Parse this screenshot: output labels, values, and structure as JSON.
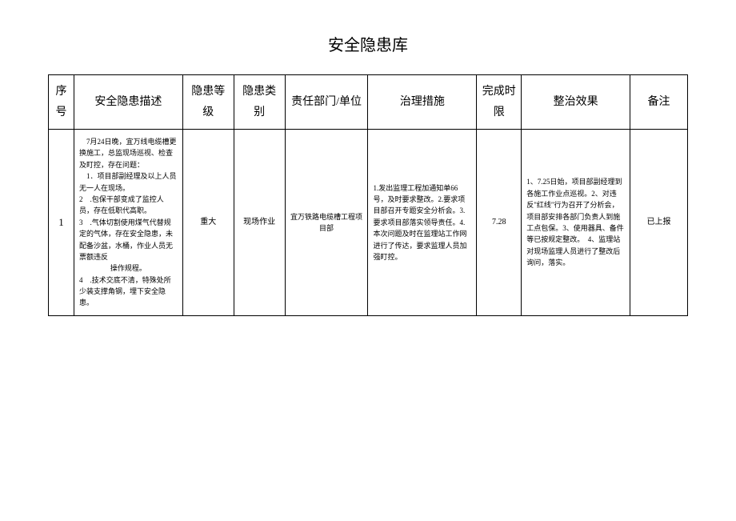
{
  "title": "安全隐患库",
  "headers": {
    "seq": "序号",
    "desc": "安全隐患描述",
    "level": "隐患等级",
    "type": "隐患类别",
    "dept": "责任部门/单位",
    "measure": "治理措施",
    "deadline": "完成时限",
    "effect": "整治效果",
    "remark": "备注"
  },
  "row": {
    "seq": "1",
    "desc_intro": "7月24日晚，宜万线电缆槽更换施工，总监现场巡视、检查及盯控，存在问题：",
    "desc_1": "1．项目部副经理及以上人员无一人在现场。",
    "desc_2": "2　.包保干部变成了监控人员，存在低职代高职。",
    "desc_3": "3　.气体切割使用煤气代替规定的气体，存在安全隐患，未配备沙盆，水桶，作业人员无票额违反",
    "desc_3b": "操作规程。",
    "desc_4": "4　.技术交底不清，特殊处所少装支撑角钢，埋下安全隐患。",
    "level": "重大",
    "type": "现场作业",
    "dept": "宜万铁路电缆槽工程项目部",
    "measure": "1.发出监理工程加通知单66号，及时要求整改。2.要求项目部召开专题安全分析会。3.要求项目部落实领导责任。4.本次问题及时在监理站工作网进行了传达，要求监理人员加强盯控。",
    "deadline": "7.28",
    "effect": "1、7.25日始，项目部副经理到各施工作业点巡视。2、对违反\"红线\"行为召开了分析会，项目部安排各部门负责人到施工点包保。3、使用器具、备件等已按规定整改。　4、监理站对现场监理人员进行了整改后询问，落实。",
    "remark": "已上报"
  }
}
